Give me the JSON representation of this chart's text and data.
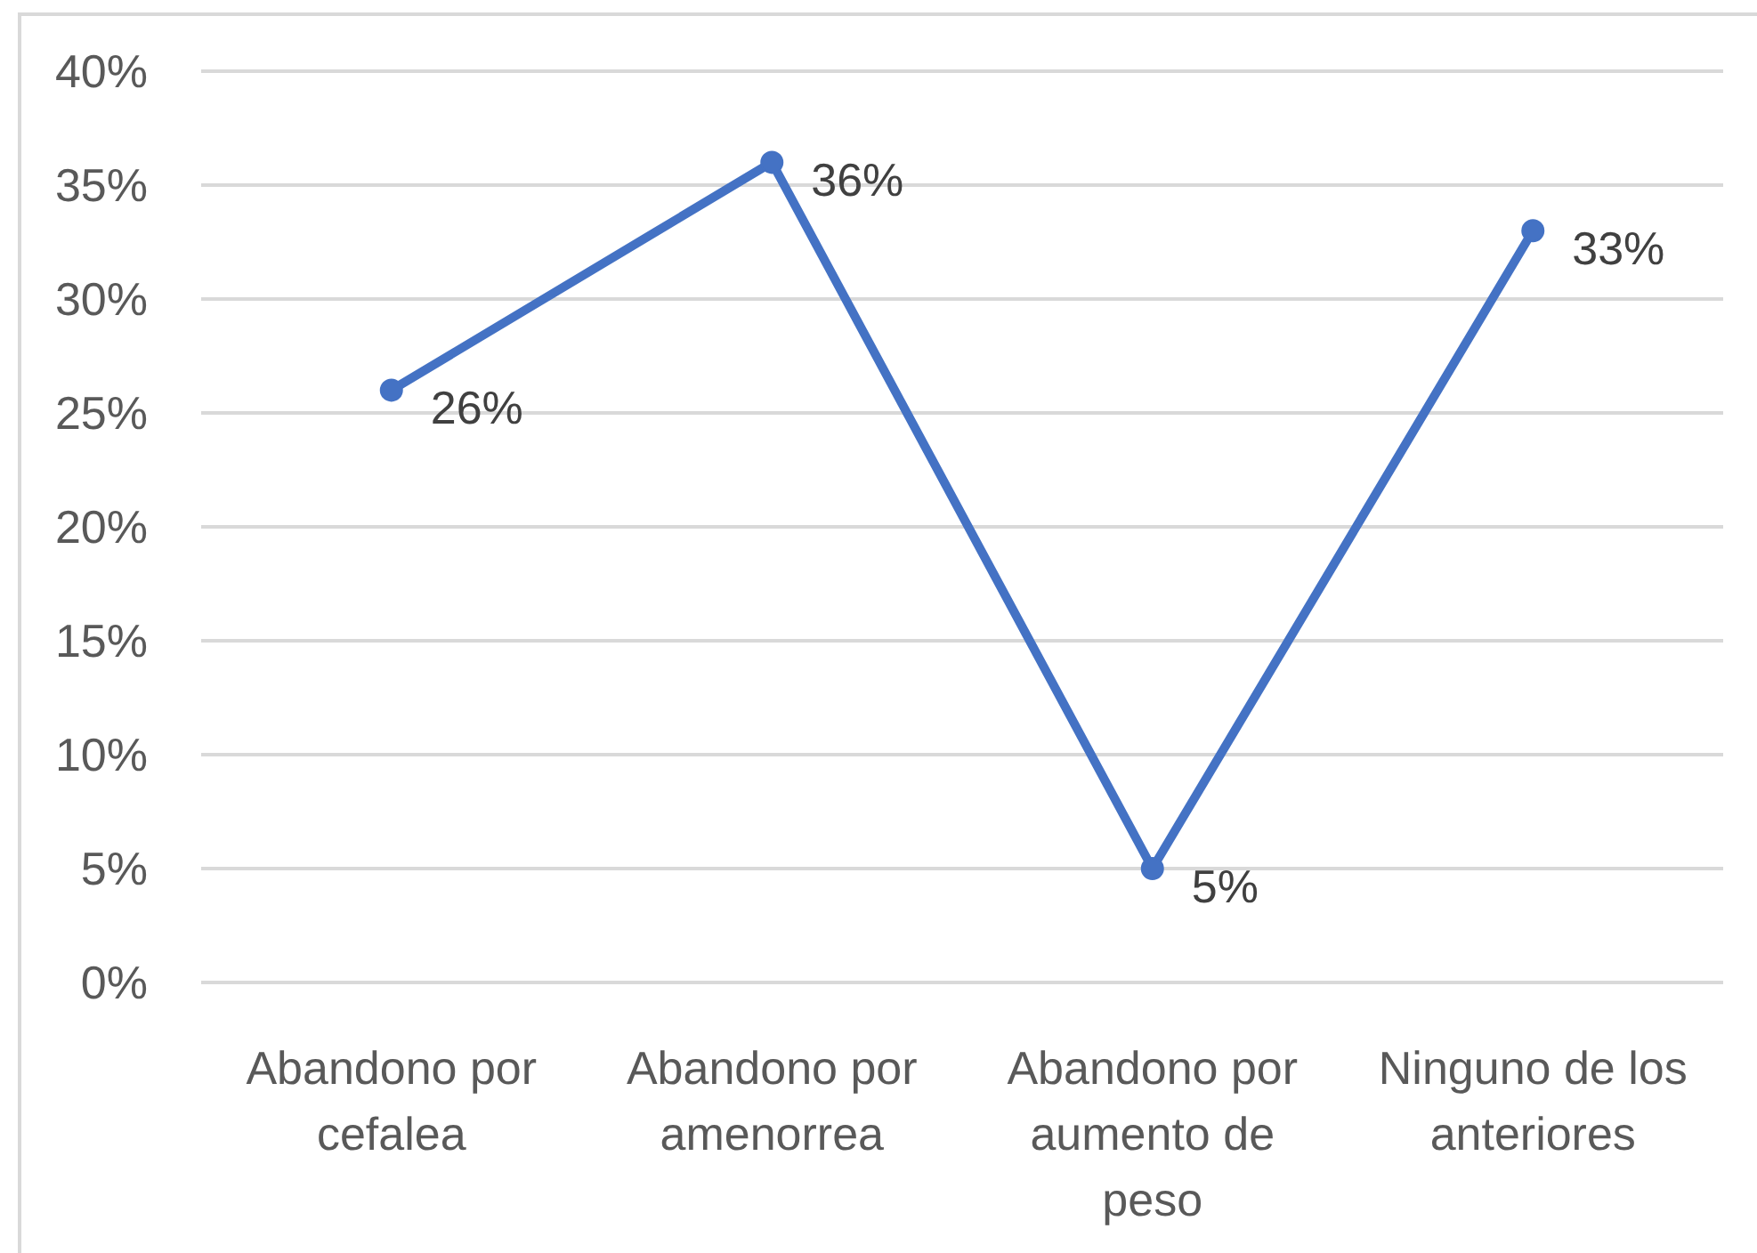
{
  "chart_data": {
    "type": "line",
    "categories": [
      "Abandono por cefalea",
      "Abandono por amenorrea",
      "Abandono por aumento de peso",
      "Ninguno de los anteriores"
    ],
    "series": [
      {
        "color": "#4472c4",
        "values": [
          26,
          36,
          5,
          33
        ],
        "value_labels": [
          "26%",
          "36%",
          "5%",
          "33%"
        ]
      }
    ],
    "ylim": [
      0,
      40
    ],
    "yticks": [
      {
        "value": 0,
        "label": "0%"
      },
      {
        "value": 5,
        "label": "5%"
      },
      {
        "value": 10,
        "label": "10%"
      },
      {
        "value": 15,
        "label": "15%"
      },
      {
        "value": 20,
        "label": "20%"
      },
      {
        "value": 25,
        "label": "25%"
      },
      {
        "value": 30,
        "label": "30%"
      },
      {
        "value": 35,
        "label": "35%"
      },
      {
        "value": 40,
        "label": "40%"
      }
    ],
    "grid": "y",
    "marker": "circle",
    "line_style": "solid"
  }
}
